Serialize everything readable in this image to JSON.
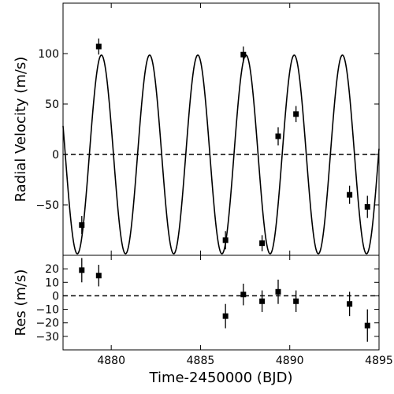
{
  "chart_data": [
    {
      "type": "scatter",
      "panel": "top",
      "xlabel": "",
      "ylabel": "Radial Velocity (m/s)",
      "xlim": [
        4877.3,
        4895.0
      ],
      "ylim": [
        -100,
        150
      ],
      "yticks": [
        -50,
        0,
        50,
        100
      ],
      "ytick_labels": [
        "−50",
        "0",
        "50",
        "100"
      ],
      "model": {
        "amplitude": 98.5,
        "period": 2.7,
        "phase_peak": 4879.45,
        "offset": 0
      },
      "reference_line": 0,
      "points": [
        {
          "x": 4878.35,
          "y": -70,
          "err": 9
        },
        {
          "x": 4879.3,
          "y": 107,
          "err": 8
        },
        {
          "x": 4886.4,
          "y": -85,
          "err": 9
        },
        {
          "x": 4887.4,
          "y": 99,
          "err": 8
        },
        {
          "x": 4888.45,
          "y": -88,
          "err": 8
        },
        {
          "x": 4889.35,
          "y": 18,
          "err": 9
        },
        {
          "x": 4890.35,
          "y": 40,
          "err": 8
        },
        {
          "x": 4893.35,
          "y": -40,
          "err": 9
        },
        {
          "x": 4894.35,
          "y": -52,
          "err": 11
        }
      ]
    },
    {
      "type": "scatter",
      "panel": "bottom",
      "xlabel": "Time-2450000 (BJD)",
      "ylabel": "Res (m/s)",
      "xlim": [
        4877.3,
        4895.0
      ],
      "ylim": [
        -40,
        30
      ],
      "xticks": [
        4880,
        4885,
        4890,
        4895
      ],
      "xtick_labels": [
        "4880",
        "4885",
        "4890",
        "4895"
      ],
      "yticks": [
        20,
        10,
        0,
        -10,
        -20,
        -30
      ],
      "ytick_labels": [
        "20",
        "10",
        "0",
        "−10",
        "−20",
        "−30"
      ],
      "reference_line": 0,
      "points": [
        {
          "x": 4878.35,
          "y": 19,
          "err": 9
        },
        {
          "x": 4879.3,
          "y": 15,
          "err": 8
        },
        {
          "x": 4886.4,
          "y": -15,
          "err": 9
        },
        {
          "x": 4887.4,
          "y": 1,
          "err": 8
        },
        {
          "x": 4888.45,
          "y": -4,
          "err": 8
        },
        {
          "x": 4889.35,
          "y": 3,
          "err": 9
        },
        {
          "x": 4890.35,
          "y": -4,
          "err": 8
        },
        {
          "x": 4893.35,
          "y": -6,
          "err": 9
        },
        {
          "x": 4894.35,
          "y": -22,
          "err": 12
        }
      ]
    }
  ]
}
